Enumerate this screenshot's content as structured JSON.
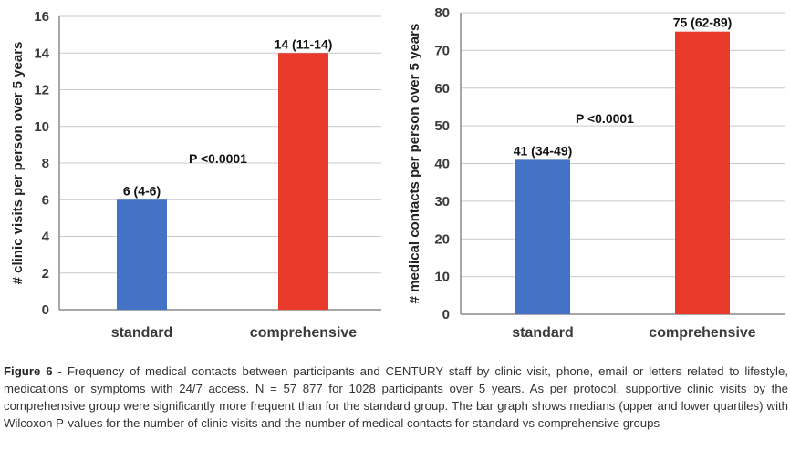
{
  "chart_data": [
    {
      "type": "bar",
      "categories": [
        "standard",
        "comprehensive"
      ],
      "values": [
        6,
        14
      ],
      "value_labels": [
        "6 (4-6)",
        "14 (11-14)"
      ],
      "colors": [
        "#4472c4",
        "#e8392a"
      ],
      "ylabel": "# clinic visits per person over 5 years",
      "ylim": [
        0,
        16
      ],
      "yticks": [
        0,
        2,
        4,
        6,
        8,
        10,
        12,
        14,
        16
      ],
      "annotation": "P <0.0001",
      "grid": true
    },
    {
      "type": "bar",
      "categories": [
        "standard",
        "comprehensive"
      ],
      "values": [
        41,
        75
      ],
      "value_labels": [
        "41 (34-49)",
        "75 (62-89)"
      ],
      "colors": [
        "#4472c4",
        "#e8392a"
      ],
      "ylabel": "# medical contacts per person over 5 years",
      "ylim": [
        0,
        80
      ],
      "yticks": [
        0,
        10,
        20,
        30,
        40,
        50,
        60,
        70,
        80
      ],
      "annotation": "P <0.0001",
      "grid": true
    }
  ],
  "caption": {
    "label": "Figure 6",
    "text": " - Frequency of medical contacts between participants and CENTURY staff by clinic visit, phone, email or letters related to lifestyle, medications or symptoms with 24/7 access. N = 57 877 for 1028 participants over 5 years. As per protocol, supportive clinic visits by the comprehensive group were significantly more frequent than for the standard group. The bar graph shows medians (upper and lower quartiles) with Wilcoxon P-values for the number of clinic visits and the number of medical contacts for standard vs comprehensive groups"
  }
}
